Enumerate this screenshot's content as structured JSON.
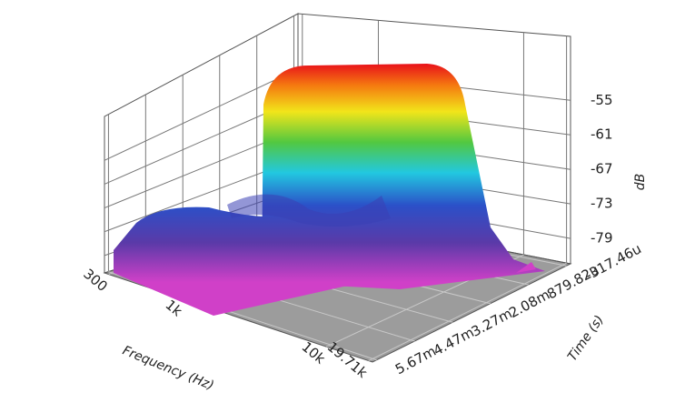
{
  "chart_data": {
    "type": "waterfall3d",
    "x_label": "Frequency (Hz)",
    "y_label": "Time (s)",
    "z_label": "dB",
    "xscale": "log",
    "xlim": [
      280,
      21000
    ],
    "xticks": [
      300,
      {
        "value": 1000,
        "label": "1k"
      },
      {
        "value": 10000,
        "label": "10k"
      },
      {
        "value": 19710,
        "label": "19.71k"
      }
    ],
    "ylim": [
      -0.00045,
      0.0058
    ],
    "yticks": [
      {
        "value": -0.00031746,
        "label": "-317.46u"
      },
      {
        "value": 0.00087982,
        "label": "879.82u"
      },
      {
        "value": 0.00208,
        "label": "2.08m"
      },
      {
        "value": 0.00327,
        "label": "3.27m"
      },
      {
        "value": 0.00447,
        "label": "4.47m"
      },
      {
        "value": 0.00567,
        "label": "5.67m"
      }
    ],
    "zlim": [
      -83.4,
      -43.9
    ],
    "zticks": [
      -55,
      -61,
      -67,
      -73,
      -79
    ],
    "grid": true
  }
}
